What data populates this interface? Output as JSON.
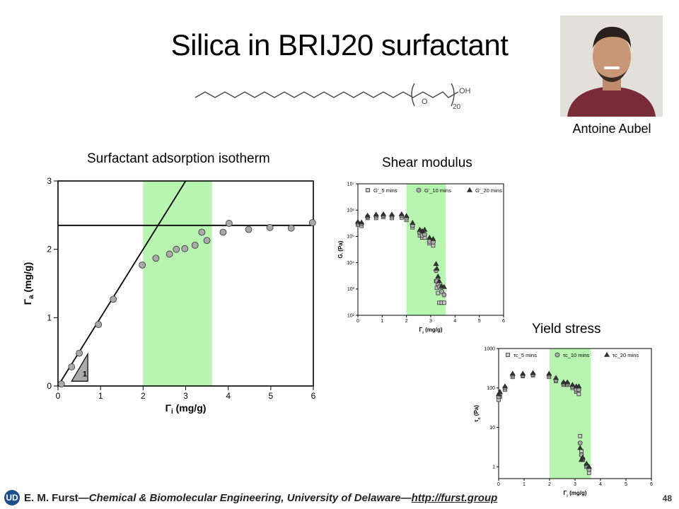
{
  "slide": {
    "title": "Silica in BRIJ20 surfactant",
    "molecule": {
      "o_label": "O",
      "oh_label": "OH",
      "subscript": "20"
    },
    "person_name": "Antoine Aubel",
    "footer": {
      "author": "E. M. Furst",
      "affiliation": "—Chemical & Biomolecular Engineering, University of Delaware—",
      "url": "http://furst.group",
      "page": "48"
    },
    "colors": {
      "highlight": "#b8f5b0",
      "marker_gray": "#a9a9a9",
      "dark": "#333333"
    }
  },
  "chart_data": [
    {
      "type": "scatter",
      "title": "Surfactant adsorption isotherm",
      "xlabel": "Γi (mg/g)",
      "ylabel": "Γa (mg/g)",
      "xlim": [
        0,
        6
      ],
      "ylim": [
        0,
        3
      ],
      "xticks": [
        0,
        1,
        2,
        3,
        4,
        5,
        6
      ],
      "yticks": [
        0,
        1,
        2,
        3
      ],
      "shaded_range": [
        2.0,
        3.62
      ],
      "slope_label": "1",
      "series": [
        {
          "x": [
            0.08,
            0.32,
            0.5,
            0.95,
            1.3,
            1.98,
            2.3,
            2.62,
            2.78,
            2.98,
            3.22,
            3.38,
            3.5,
            3.88,
            4.02,
            4.48,
            4.98,
            5.48,
            5.98
          ],
          "y": [
            0.03,
            0.28,
            0.48,
            0.9,
            1.27,
            1.77,
            1.87,
            1.93,
            2.0,
            2.01,
            2.06,
            2.25,
            2.13,
            2.25,
            2.38,
            2.29,
            2.32,
            2.31,
            2.39
          ]
        }
      ],
      "lines": {
        "slope_line": {
          "x": [
            0,
            3.0
          ],
          "y": [
            0,
            3.0
          ]
        },
        "plateau": 2.35
      }
    },
    {
      "type": "scatter",
      "title": "Shear modulus",
      "xlabel": "Γi (mg/g)",
      "ylabel": "G' (Pa)",
      "xlim": [
        0,
        6
      ],
      "ylim": [
        100,
        10000000
      ],
      "log_y": true,
      "xticks": [
        0,
        1,
        2,
        3,
        4,
        5,
        6
      ],
      "ytick_labels": [
        "10²",
        "10³",
        "10⁴",
        "10⁵",
        "10⁶",
        "10⁷"
      ],
      "shaded_range": [
        2.0,
        3.62
      ],
      "series": [
        {
          "name": "G'_5 mins",
          "marker": "square",
          "x": [
            0,
            0.15,
            0.4,
            0.75,
            1.05,
            1.4,
            1.8,
            2.0,
            2.25,
            2.55,
            2.65,
            2.75,
            2.95,
            3.1,
            3.22,
            3.25,
            3.3,
            3.35,
            3.45,
            3.55
          ],
          "y": [
            280000,
            250000,
            500000,
            500000,
            550000,
            500000,
            520000,
            420000,
            220000,
            110000,
            90000,
            90000,
            55000,
            45000,
            2000,
            1100,
            700,
            300,
            300,
            300
          ]
        },
        {
          "name": "G'_10 mins",
          "marker": "circle",
          "x": [
            0,
            0.15,
            0.4,
            0.75,
            1.05,
            1.4,
            1.8,
            2.0,
            2.25,
            2.55,
            2.65,
            2.75,
            2.95,
            3.1,
            3.22,
            3.25,
            3.3,
            3.35,
            3.45,
            3.55
          ],
          "y": [
            320000,
            300000,
            560000,
            600000,
            620000,
            600000,
            620000,
            500000,
            260000,
            140000,
            110000,
            120000,
            65000,
            60000,
            5000,
            2000,
            1500,
            1200,
            800,
            600
          ]
        },
        {
          "name": "G'_20 mins",
          "marker": "triangle",
          "x": [
            0,
            0.15,
            0.4,
            0.75,
            1.05,
            1.4,
            1.8,
            2.0,
            2.25,
            2.55,
            2.65,
            2.75,
            2.95,
            3.1,
            3.22,
            3.25,
            3.3,
            3.35,
            3.45,
            3.55
          ],
          "y": [
            360000,
            340000,
            620000,
            680000,
            700000,
            680000,
            700000,
            600000,
            330000,
            180000,
            160000,
            180000,
            90000,
            80000,
            9000,
            6000,
            3000,
            2000,
            1300,
            1200
          ]
        }
      ]
    },
    {
      "type": "scatter",
      "title": "Yield stress",
      "xlabel": "Γi (mg/g)",
      "ylabel": "τc (Pa)",
      "xlim": [
        0,
        6
      ],
      "ylim": [
        0.5,
        1000
      ],
      "log_y": true,
      "xticks": [
        0,
        1,
        2,
        3,
        4,
        5,
        6
      ],
      "ytick_labels": [
        "1",
        "10",
        "100",
        "1000"
      ],
      "shaded_range": [
        2.0,
        3.62
      ],
      "series": [
        {
          "name": "τc_5 mins",
          "marker": "square",
          "x": [
            0,
            0.05,
            0.25,
            0.55,
            0.95,
            1.35,
            1.98,
            2.25,
            2.55,
            2.7,
            2.9,
            3.05,
            3.15,
            3.2,
            3.25,
            3.3,
            3.45,
            3.55
          ],
          "y": [
            50,
            60,
            90,
            190,
            200,
            210,
            190,
            150,
            120,
            120,
            100,
            80,
            70,
            6,
            2.5,
            1.5,
            1.0,
            0.7
          ]
        },
        {
          "name": "τc_10 mins",
          "marker": "circle",
          "x": [
            0,
            0.05,
            0.25,
            0.55,
            0.95,
            1.35,
            1.98,
            2.25,
            2.55,
            2.7,
            2.9,
            3.05,
            3.15,
            3.2,
            3.25,
            3.3,
            3.45,
            3.55
          ],
          "y": [
            60,
            70,
            100,
            210,
            210,
            220,
            210,
            160,
            130,
            130,
            110,
            90,
            90,
            4,
            2,
            1.6,
            1.1,
            0.85
          ]
        },
        {
          "name": "τc_20 mins",
          "marker": "triangle",
          "x": [
            0,
            0.05,
            0.25,
            0.55,
            0.95,
            1.35,
            1.98,
            2.25,
            2.55,
            2.7,
            2.9,
            3.05,
            3.15,
            3.2,
            3.25,
            3.3,
            3.45,
            3.55
          ],
          "y": [
            70,
            80,
            110,
            230,
            230,
            240,
            230,
            180,
            140,
            140,
            120,
            110,
            110,
            3,
            1.5,
            1.7,
            1.2,
            1.0
          ]
        }
      ]
    }
  ]
}
